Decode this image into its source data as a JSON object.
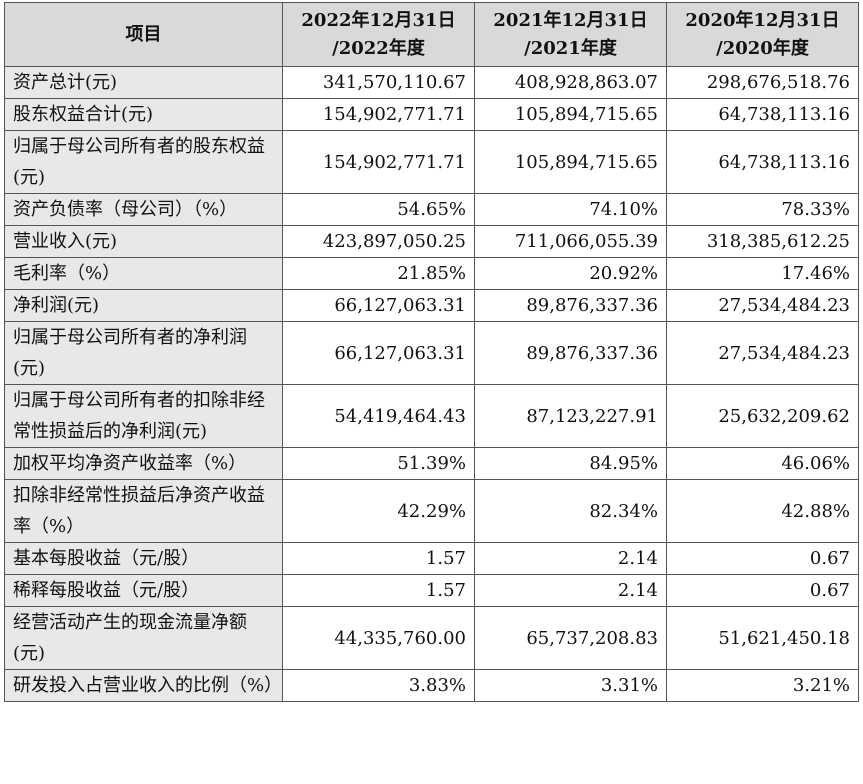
{
  "table": {
    "headers": [
      "项目",
      "2022年12月31日\n/2022年度",
      "2021年12月31日\n/2021年度",
      "2020年12月31日\n/2020年度"
    ],
    "header_lines": [
      [
        "项目"
      ],
      [
        "2022年12月31日",
        "/2022年度"
      ],
      [
        "2021年12月31日",
        "/2021年度"
      ],
      [
        "2020年12月31日",
        "/2020年度"
      ]
    ],
    "rows": [
      {
        "label": "资产总计(元)",
        "values": [
          "341,570,110.67",
          "408,928,863.07",
          "298,676,518.76"
        ]
      },
      {
        "label": "股东权益合计(元)",
        "values": [
          "154,902,771.71",
          "105,894,715.65",
          "64,738,113.16"
        ]
      },
      {
        "label": "归属于母公司所有者的股东权益(元)",
        "values": [
          "154,902,771.71",
          "105,894,715.65",
          "64,738,113.16"
        ]
      },
      {
        "label": "资产负债率（母公司）（%）",
        "values": [
          "54.65%",
          "74.10%",
          "78.33%"
        ]
      },
      {
        "label": "营业收入(元)",
        "values": [
          "423,897,050.25",
          "711,066,055.39",
          "318,385,612.25"
        ]
      },
      {
        "label": "毛利率（%）",
        "values": [
          "21.85%",
          "20.92%",
          "17.46%"
        ]
      },
      {
        "label": "净利润(元)",
        "values": [
          "66,127,063.31",
          "89,876,337.36",
          "27,534,484.23"
        ]
      },
      {
        "label": "归属于母公司所有者的净利润(元)",
        "values": [
          "66,127,063.31",
          "89,876,337.36",
          "27,534,484.23"
        ]
      },
      {
        "label": "归属于母公司所有者的扣除非经常性损益后的净利润(元)",
        "values": [
          "54,419,464.43",
          "87,123,227.91",
          "25,632,209.62"
        ]
      },
      {
        "label": "加权平均净资产收益率（%）",
        "values": [
          "51.39%",
          "84.95%",
          "46.06%"
        ]
      },
      {
        "label": "扣除非经常性损益后净资产收益率（%）",
        "values": [
          "42.29%",
          "82.34%",
          "42.88%"
        ]
      },
      {
        "label": "基本每股收益（元/股）",
        "values": [
          "1.57",
          "2.14",
          "0.67"
        ]
      },
      {
        "label": "稀释每股收益（元/股）",
        "values": [
          "1.57",
          "2.14",
          "0.67"
        ]
      },
      {
        "label": "经营活动产生的现金流量净额(元)",
        "values": [
          "44,335,760.00",
          "65,737,208.83",
          "51,621,450.18"
        ]
      },
      {
        "label": "研发投入占营业收入的比例（%）",
        "values": [
          "3.83%",
          "3.31%",
          "3.21%"
        ]
      }
    ]
  }
}
